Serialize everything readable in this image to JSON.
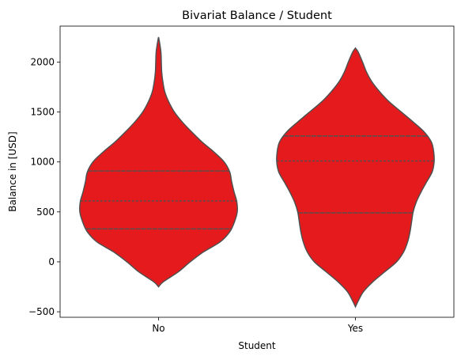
{
  "chart_data": {
    "type": "violin",
    "title": "Bivariat Balance / Student",
    "xlabel": "Student",
    "ylabel": "Balance in [USD]",
    "categories": [
      "No",
      "Yes"
    ],
    "ylim": [
      -555,
      2360
    ],
    "yticks": [
      -500,
      0,
      500,
      1000,
      1500,
      2000
    ],
    "ytick_labels": [
      "−500",
      "0",
      "500",
      "1000",
      "1500",
      "2000"
    ],
    "fill_color": "#e41a1c",
    "edge_color": "#505050",
    "grid": false,
    "legend": "none",
    "violins": [
      {
        "category": "No",
        "range": [
          -250,
          2250
        ],
        "quartiles": [
          330,
          610,
          910
        ],
        "density_profile": [
          [
            -250,
            0.0
          ],
          [
            -200,
            0.06
          ],
          [
            -100,
            0.25
          ],
          [
            0,
            0.4
          ],
          [
            100,
            0.57
          ],
          [
            200,
            0.78
          ],
          [
            300,
            0.9
          ],
          [
            400,
            0.96
          ],
          [
            500,
            0.995
          ],
          [
            600,
            0.99
          ],
          [
            700,
            0.955
          ],
          [
            800,
            0.925
          ],
          [
            900,
            0.9
          ],
          [
            1000,
            0.83
          ],
          [
            1100,
            0.7
          ],
          [
            1200,
            0.55
          ],
          [
            1300,
            0.42
          ],
          [
            1400,
            0.3
          ],
          [
            1500,
            0.2
          ],
          [
            1600,
            0.13
          ],
          [
            1700,
            0.08
          ],
          [
            1800,
            0.055
          ],
          [
            1900,
            0.04
          ],
          [
            2000,
            0.035
          ],
          [
            2100,
            0.03
          ],
          [
            2200,
            0.012
          ],
          [
            2250,
            0.0
          ]
        ]
      },
      {
        "category": "Yes",
        "range": [
          -450,
          2140
        ],
        "quartiles": [
          490,
          1010,
          1260
        ],
        "density_profile": [
          [
            -450,
            0.0
          ],
          [
            -400,
            0.03
          ],
          [
            -300,
            0.1
          ],
          [
            -200,
            0.22
          ],
          [
            -100,
            0.37
          ],
          [
            0,
            0.52
          ],
          [
            100,
            0.61
          ],
          [
            200,
            0.66
          ],
          [
            300,
            0.69
          ],
          [
            400,
            0.71
          ],
          [
            500,
            0.73
          ],
          [
            600,
            0.77
          ],
          [
            700,
            0.83
          ],
          [
            800,
            0.9
          ],
          [
            900,
            0.97
          ],
          [
            1000,
            0.995
          ],
          [
            1100,
            0.99
          ],
          [
            1200,
            0.96
          ],
          [
            1300,
            0.87
          ],
          [
            1400,
            0.73
          ],
          [
            1500,
            0.58
          ],
          [
            1600,
            0.43
          ],
          [
            1700,
            0.31
          ],
          [
            1800,
            0.21
          ],
          [
            1900,
            0.14
          ],
          [
            2000,
            0.09
          ],
          [
            2100,
            0.035
          ],
          [
            2140,
            0.0
          ]
        ]
      }
    ]
  }
}
